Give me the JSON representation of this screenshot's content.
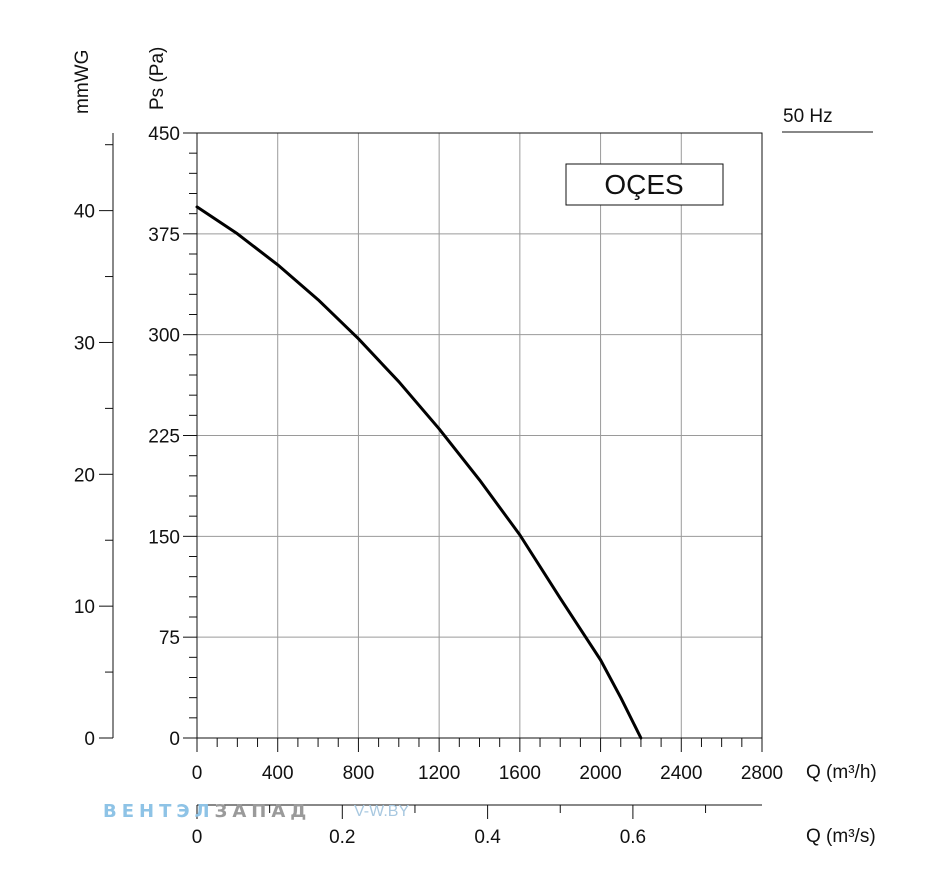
{
  "chart_data": {
    "type": "line",
    "freq_label": "50 Hz",
    "model_label": "OÇES",
    "y_label_pa": "Ps (Pa)",
    "y_label_mmwg": "mmWG",
    "x_label_m3h": "Q (m³/h)",
    "x_label_m3s": "Q (m³/s)",
    "xlim": [
      0,
      2800
    ],
    "ylim": [
      0,
      450
    ],
    "x_ticks": [
      0,
      400,
      800,
      1200,
      1600,
      2000,
      2400,
      2800
    ],
    "y_ticks": [
      0,
      75,
      150,
      225,
      300,
      375,
      450
    ],
    "mmwg_ticks": [
      0,
      10,
      20,
      30,
      40
    ],
    "m3s_ticks": [
      "0",
      "0.2",
      "0.4",
      "0.6"
    ],
    "grid": true,
    "series": [
      {
        "x": [
          0,
          200,
          400,
          600,
          800,
          1000,
          1200,
          1400,
          1600,
          1800,
          2000,
          2100,
          2200
        ],
        "y": [
          395,
          375,
          352,
          326,
          297,
          265,
          230,
          192,
          151,
          104,
          58,
          30,
          0
        ]
      }
    ],
    "watermark_part1": "ВЕНТЭЛ",
    "watermark_part2": "ЗАПАД",
    "watermark_site": "V-W.BY"
  }
}
